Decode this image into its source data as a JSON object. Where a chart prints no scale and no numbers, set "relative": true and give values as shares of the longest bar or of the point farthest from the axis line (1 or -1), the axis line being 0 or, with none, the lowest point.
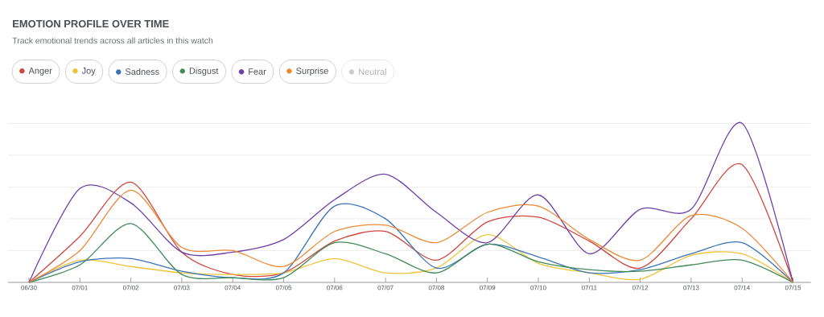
{
  "chart_data": {
    "type": "line",
    "title": "EMOTION PROFILE OVER TIME",
    "subtitle": "Track emotional trends across all articles in this watch",
    "categories": [
      "06/30",
      "07/01",
      "07/02",
      "07/03",
      "07/04",
      "07/05",
      "07/06",
      "07/07",
      "07/08",
      "07/09",
      "07/10",
      "07/11",
      "07/12",
      "07/13",
      "07/14",
      "07/15"
    ],
    "relative": true,
    "grid": "y",
    "legend": "top",
    "series": [
      {
        "name": "Anger",
        "color": "#d0463c",
        "values": [
          0,
          0.29,
          0.63,
          0.19,
          0.05,
          0.06,
          0.26,
          0.32,
          0.14,
          0.38,
          0.41,
          0.26,
          0.09,
          0.4,
          0.74,
          0
        ]
      },
      {
        "name": "Joy",
        "color": "#f0c23a",
        "values": [
          0,
          0.14,
          0.1,
          0.06,
          0.05,
          0.06,
          0.15,
          0.06,
          0.09,
          0.3,
          0.12,
          0.06,
          0.02,
          0.17,
          0.18,
          0
        ]
      },
      {
        "name": "Sadness",
        "color": "#3a74b8",
        "values": [
          0,
          0.13,
          0.15,
          0.07,
          0.03,
          0.06,
          0.48,
          0.4,
          0.09,
          0.24,
          0.16,
          0.06,
          0.08,
          0.18,
          0.25,
          0
        ]
      },
      {
        "name": "Disgust",
        "color": "#3f8a55",
        "values": [
          0,
          0.11,
          0.37,
          0.05,
          0.03,
          0.03,
          0.25,
          0.18,
          0.06,
          0.24,
          0.13,
          0.08,
          0.07,
          0.11,
          0.14,
          0
        ]
      },
      {
        "name": "Fear",
        "color": "#6f3fa8",
        "values": [
          0,
          0.59,
          0.5,
          0.19,
          0.19,
          0.27,
          0.52,
          0.68,
          0.44,
          0.25,
          0.55,
          0.18,
          0.46,
          0.46,
          1,
          0
        ]
      },
      {
        "name": "Surprise",
        "color": "#ec8a34",
        "values": [
          0,
          0.2,
          0.58,
          0.22,
          0.2,
          0.1,
          0.32,
          0.36,
          0.25,
          0.44,
          0.48,
          0.27,
          0.14,
          0.42,
          0.34,
          0
        ]
      },
      {
        "name": "Neutral",
        "color": "#cccccc",
        "values": [
          null,
          null,
          null,
          null,
          null,
          null,
          null,
          null,
          null,
          null,
          null,
          null,
          null,
          null,
          null,
          null
        ]
      }
    ]
  }
}
